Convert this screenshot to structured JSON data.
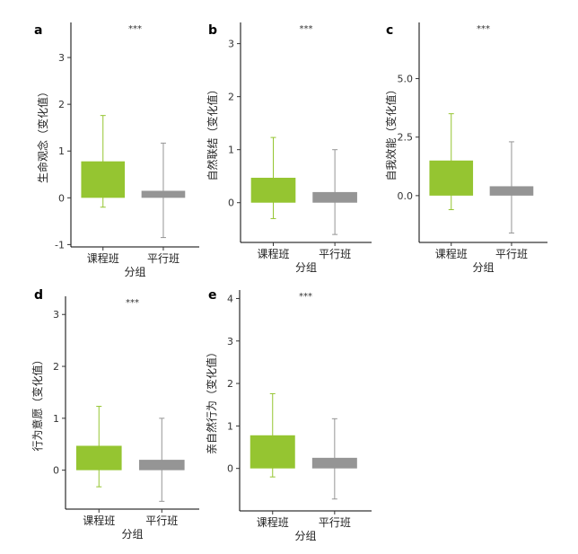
{
  "colors": {
    "course": "#95c531",
    "parallel": "#959595",
    "axis": "#000000"
  },
  "chart_data": [
    {
      "panel": "a",
      "type": "box",
      "categories": [
        "课程班",
        "平行班"
      ],
      "ylabel": "生命观念（变化值）",
      "xlabel": "分组",
      "ylim": [
        -1.05,
        3.75
      ],
      "yticks": [
        -1,
        0,
        1,
        2,
        3
      ],
      "ytick_labels": [
        "-1",
        "0",
        "1",
        "2",
        "3"
      ],
      "boxes": [
        {
          "lo": -0.2,
          "q1": 0.0,
          "q3": 0.78,
          "hi": 1.76
        },
        {
          "lo": -0.85,
          "q1": 0.0,
          "q3": 0.15,
          "hi": 1.17
        }
      ],
      "significance": "***"
    },
    {
      "panel": "b",
      "type": "box",
      "categories": [
        "课程班",
        "平行班"
      ],
      "ylabel": "自然联结（变化值）",
      "xlabel": "分组",
      "ylim": [
        -0.75,
        3.4
      ],
      "yticks": [
        0,
        1,
        2,
        3
      ],
      "ytick_labels": [
        "0",
        "1",
        "2",
        "3"
      ],
      "boxes": [
        {
          "lo": -0.3,
          "q1": 0.0,
          "q3": 0.47,
          "hi": 1.23
        },
        {
          "lo": -0.6,
          "q1": 0.0,
          "q3": 0.2,
          "hi": 1.0
        }
      ],
      "significance": "***"
    },
    {
      "panel": "c",
      "type": "box",
      "categories": [
        "课程班",
        "平行班"
      ],
      "ylabel": "自我效能（变化值）",
      "xlabel": "分组",
      "ylim": [
        -2.0,
        7.4
      ],
      "yticks": [
        0.0,
        2.5,
        5.0
      ],
      "ytick_labels": [
        "0.0",
        "2.5",
        "5.0"
      ],
      "boxes": [
        {
          "lo": -0.6,
          "q1": 0.0,
          "q3": 1.5,
          "hi": 3.5
        },
        {
          "lo": -1.6,
          "q1": 0.0,
          "q3": 0.4,
          "hi": 2.3
        }
      ],
      "significance": "***"
    },
    {
      "panel": "d",
      "type": "box",
      "categories": [
        "课程班",
        "平行班"
      ],
      "ylabel": "行为意愿（变化值）",
      "xlabel": "分组",
      "ylim": [
        -0.75,
        3.35
      ],
      "yticks": [
        0,
        1,
        2,
        3
      ],
      "ytick_labels": [
        "0",
        "1",
        "2",
        "3"
      ],
      "boxes": [
        {
          "lo": -0.32,
          "q1": 0.0,
          "q3": 0.47,
          "hi": 1.23
        },
        {
          "lo": -0.6,
          "q1": 0.0,
          "q3": 0.2,
          "hi": 1.0
        }
      ],
      "significance": "***"
    },
    {
      "panel": "e",
      "type": "box",
      "categories": [
        "课程班",
        "平行班"
      ],
      "ylabel": "亲自然行为（变化值）",
      "xlabel": "分组",
      "ylim": [
        -1.0,
        4.2
      ],
      "yticks": [
        0,
        1,
        2,
        3,
        4
      ],
      "ytick_labels": [
        "0",
        "1",
        "2",
        "3",
        "4"
      ],
      "boxes": [
        {
          "lo": -0.2,
          "q1": 0.0,
          "q3": 0.78,
          "hi": 1.76
        },
        {
          "lo": -0.72,
          "q1": 0.0,
          "q3": 0.25,
          "hi": 1.17
        }
      ],
      "significance": "***"
    }
  ]
}
